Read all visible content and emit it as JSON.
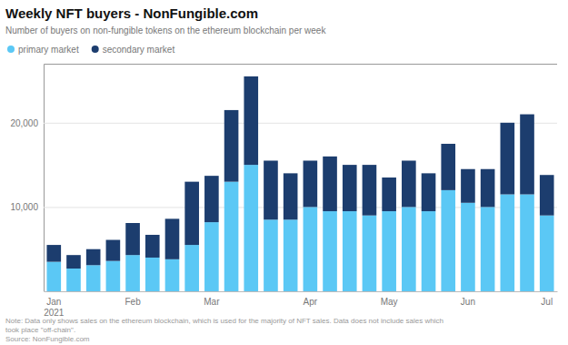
{
  "chart_data": {
    "type": "bar",
    "stacked": true,
    "title": "Weekly NFT buyers - NonFungible.com",
    "subtitle": "Number of buyers on non-fungible tokens on the ethereum blockchain per week",
    "annotations": [
      "Note: Data only shows sales on the ethereum blockchain, which is used for the majority of NFT sales. Data does not include sales which",
      "took place \"off-chain\".",
      "Source: NonFungible.com"
    ],
    "categories": [
      "Jan\n2021",
      null,
      null,
      null,
      "Feb",
      null,
      null,
      null,
      "Mar",
      null,
      null,
      null,
      null,
      "Apr",
      null,
      null,
      null,
      "May",
      null,
      null,
      null,
      "Jun",
      null,
      null,
      null,
      "Jul"
    ],
    "series": [
      {
        "name": "primary market",
        "color": "#5BC8F5",
        "values": [
          3500,
          2700,
          3100,
          3600,
          4300,
          4000,
          3800,
          5500,
          8200,
          13000,
          15000,
          8500,
          8500,
          10000,
          9500,
          9500,
          9000,
          9500,
          10000,
          9500,
          12000,
          10500,
          10000,
          11500,
          11500,
          9000
        ]
      },
      {
        "name": "secondary market",
        "color": "#1C3D6E",
        "values": [
          2000,
          1600,
          1900,
          2500,
          3800,
          2700,
          4800,
          7500,
          5500,
          8500,
          10500,
          7000,
          5500,
          5500,
          6500,
          5500,
          6000,
          4000,
          5500,
          4500,
          5500,
          4000,
          4500,
          8500,
          9500,
          4800
        ]
      }
    ],
    "ylim": [
      0,
      27000
    ],
    "yticks": [
      {
        "value": 0,
        "label": ""
      },
      {
        "value": 10000,
        "label": "10,000"
      },
      {
        "value": 20000,
        "label": "20,000"
      }
    ],
    "grid": true,
    "legend": "upper left"
  }
}
